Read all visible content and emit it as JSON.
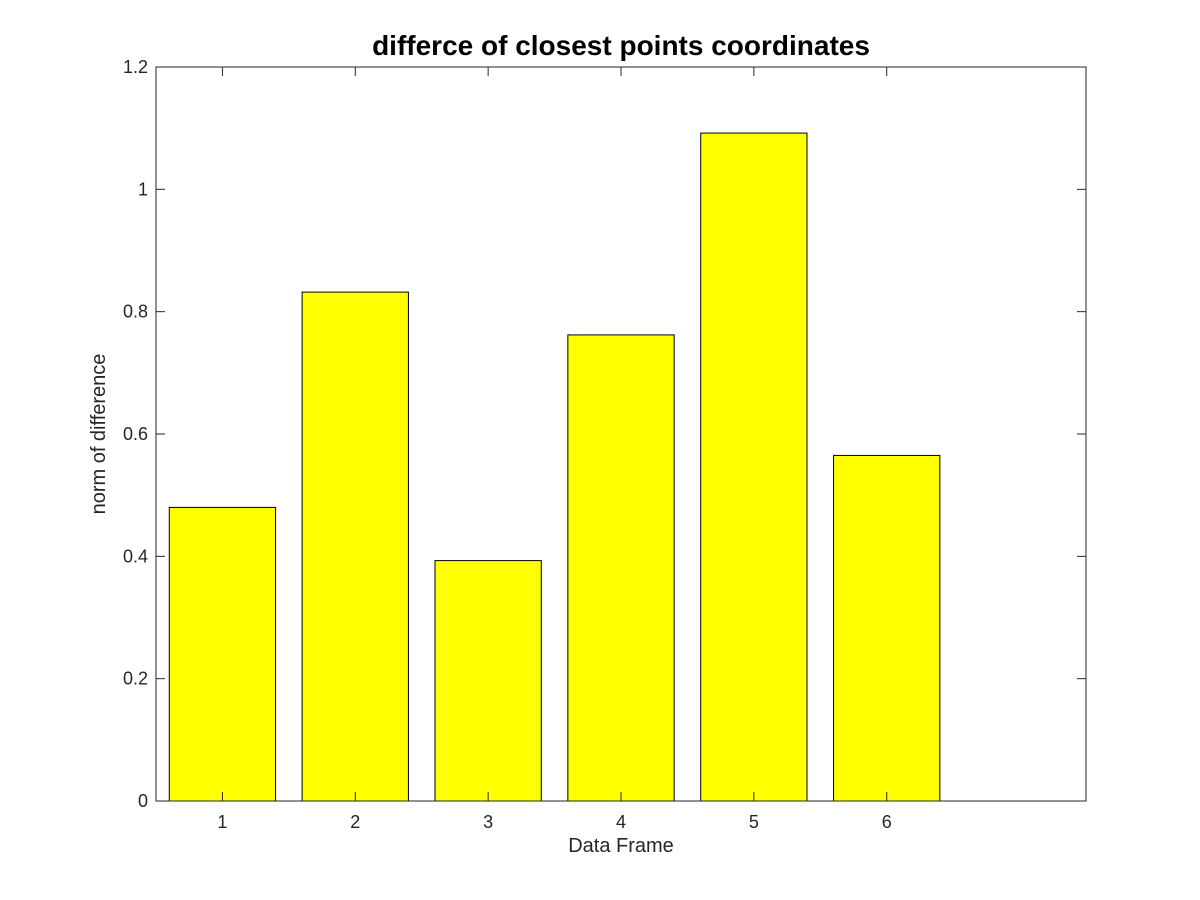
{
  "chart_data": {
    "type": "bar",
    "title": "differce of closest points coordinates",
    "xlabel": "Data Frame",
    "ylabel": "norm of difference",
    "categories": [
      "1",
      "2",
      "3",
      "4",
      "5",
      "6"
    ],
    "values": [
      0.48,
      0.832,
      0.393,
      0.762,
      1.092,
      0.565
    ],
    "xlim": [
      0.5,
      7.5
    ],
    "ylim": [
      0,
      1.2
    ],
    "yticks": [
      0,
      0.2,
      0.4,
      0.6,
      0.8,
      1,
      1.2
    ],
    "ytick_labels": [
      "0",
      "0.2",
      "0.4",
      "0.6",
      "0.8",
      "1",
      "1.2"
    ],
    "bar_color": "#ffff00",
    "edge_color": "#000000",
    "grid": false,
    "legend": "none"
  }
}
